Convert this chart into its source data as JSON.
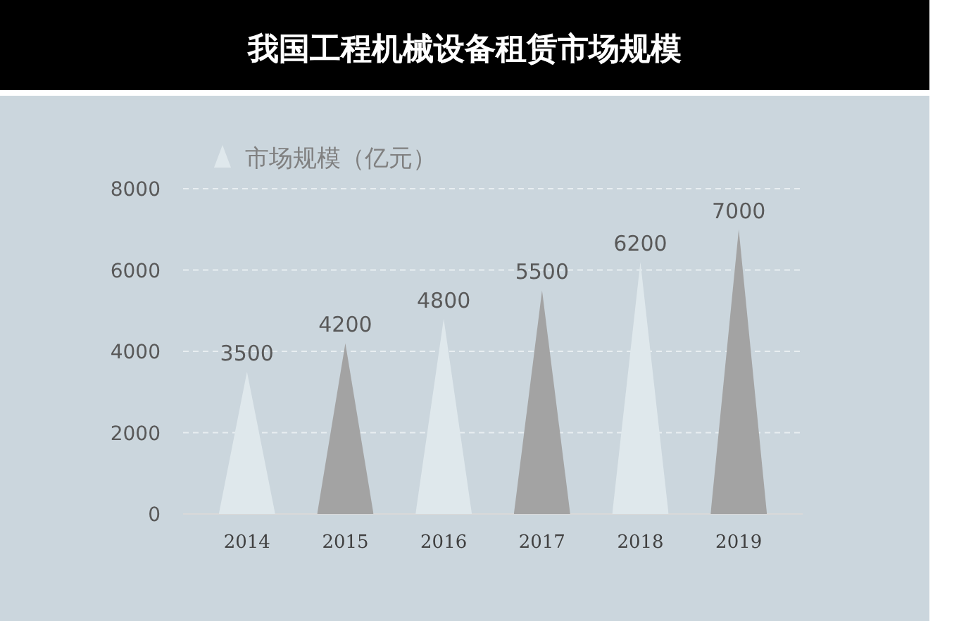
{
  "chart_data": {
    "type": "bar",
    "title": "我国工程机械设备租赁市场规模",
    "categories": [
      "2014",
      "2015",
      "2016",
      "2017",
      "2018",
      "2019"
    ],
    "series": [
      {
        "name": "市场规模（亿元）",
        "color": "#dfe8ec",
        "colors": [
          "#dfe8ec",
          "#a3a3a3",
          "#dfe8ec",
          "#a3a3a3",
          "#dfe8ec",
          "#a3a3a3"
        ],
        "values": [
          3500,
          4200,
          4800,
          5500,
          6200,
          7000
        ]
      }
    ],
    "ylim": [
      0,
      8000
    ],
    "yticks": [
      0,
      2000,
      4000,
      6000,
      8000
    ],
    "grid": "y",
    "legend": "top left",
    "data_labels": true
  }
}
